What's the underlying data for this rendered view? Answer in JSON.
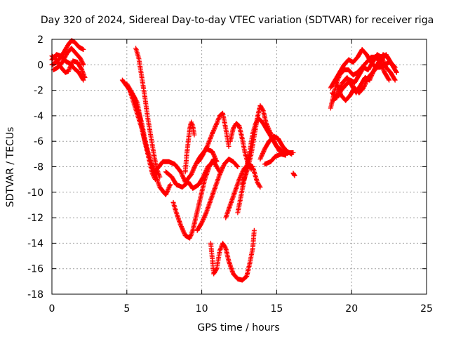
{
  "chart_data": {
    "type": "scatter",
    "title": "Day 320 of 2024, Sidereal Day-to-day VTEC variation (SDTVAR) for receiver riga",
    "xlabel": "GPS time / hours",
    "ylabel": "SDTVAR / TECUs",
    "xlim": [
      0,
      25
    ],
    "ylim": [
      -18,
      2
    ],
    "xticks": [
      0,
      5,
      10,
      15,
      20,
      25
    ],
    "yticks": [
      2,
      0,
      -2,
      -4,
      -6,
      -8,
      -10,
      -12,
      -14,
      -16,
      -18
    ],
    "grid": true,
    "marker": "plus",
    "color": "#ff0000",
    "series": [
      {
        "points": [
          [
            0,
            0.4
          ],
          [
            0.3,
            0.8
          ],
          [
            0.6,
            0.7
          ],
          [
            0.9,
            0.3
          ],
          [
            1.2,
            0.1
          ],
          [
            1.5,
            -0.3
          ],
          [
            1.8,
            -0.6
          ],
          [
            2.1,
            -1.2
          ]
        ]
      },
      {
        "points": [
          [
            0,
            0
          ],
          [
            0.3,
            0.2
          ],
          [
            0.6,
            0.6
          ],
          [
            0.9,
            1.2
          ],
          [
            1.1,
            1.6
          ],
          [
            1.3,
            1.9
          ],
          [
            1.5,
            1.8
          ],
          [
            1.8,
            1.4
          ],
          [
            2.1,
            1.2
          ]
        ]
      },
      {
        "points": [
          [
            0,
            0.7
          ],
          [
            0.3,
            0.4
          ],
          [
            0.6,
            -0.2
          ],
          [
            0.9,
            -0.6
          ],
          [
            1.1,
            -0.5
          ],
          [
            1.4,
            0.3
          ],
          [
            1.7,
            0.2
          ],
          [
            2.0,
            -0.4
          ],
          [
            2.2,
            -1.0
          ]
        ]
      },
      {
        "points": [
          [
            0.1,
            -0.4
          ],
          [
            0.4,
            -0.2
          ],
          [
            0.7,
            0.2
          ],
          [
            1.0,
            0.9
          ],
          [
            1.3,
            1.3
          ],
          [
            1.6,
            0.9
          ],
          [
            1.9,
            0.5
          ],
          [
            2.1,
            0.0
          ]
        ]
      },
      {
        "points": [
          [
            4.7,
            -1.2
          ],
          [
            5.2,
            -2.0
          ],
          [
            5.6,
            -3.5
          ],
          [
            6.0,
            -5.0
          ],
          [
            6.3,
            -6.5
          ],
          [
            6.6,
            -7.6
          ],
          [
            6.9,
            -8.6
          ],
          [
            7.2,
            -9.6
          ],
          [
            7.6,
            -10.2
          ],
          [
            7.9,
            -9.4
          ]
        ]
      },
      {
        "points": [
          [
            5.6,
            1.3
          ],
          [
            5.8,
            0.5
          ],
          [
            6.0,
            -1.0
          ],
          [
            6.2,
            -2.5
          ],
          [
            6.4,
            -4.2
          ],
          [
            6.6,
            -5.6
          ],
          [
            6.8,
            -7.0
          ],
          [
            7.0,
            -8.2
          ],
          [
            7.2,
            -8.8
          ]
        ]
      },
      {
        "points": [
          [
            5.0,
            -1.5
          ],
          [
            5.4,
            -2.3
          ],
          [
            5.7,
            -3.0
          ],
          [
            5.9,
            -4.2
          ],
          [
            6.1,
            -5.5
          ],
          [
            6.3,
            -6.5
          ],
          [
            6.5,
            -7.5
          ],
          [
            6.7,
            -8.5
          ],
          [
            6.9,
            -9.0
          ]
        ]
      },
      {
        "points": [
          [
            5.2,
            -2.0
          ],
          [
            5.5,
            -2.6
          ],
          [
            5.8,
            -3.8
          ],
          [
            6.0,
            -4.6
          ],
          [
            6.2,
            -5.8
          ],
          [
            6.4,
            -6.8
          ],
          [
            6.6,
            -7.6
          ],
          [
            6.8,
            -8.2
          ],
          [
            7.0,
            -8.6
          ]
        ]
      },
      {
        "points": [
          [
            7.0,
            -8.2
          ],
          [
            7.4,
            -7.6
          ],
          [
            7.8,
            -7.6
          ],
          [
            8.2,
            -7.8
          ],
          [
            8.6,
            -8.4
          ],
          [
            8.9,
            -9.2
          ],
          [
            9.3,
            -8.6
          ],
          [
            9.6,
            -7.8
          ],
          [
            9.9,
            -7.2
          ],
          [
            10.3,
            -6.6
          ],
          [
            10.7,
            -6.8
          ],
          [
            11.0,
            -7.6
          ]
        ]
      },
      {
        "points": [
          [
            7.6,
            -8.4
          ],
          [
            8.0,
            -8.8
          ],
          [
            8.3,
            -9.4
          ],
          [
            8.7,
            -9.6
          ],
          [
            9.1,
            -9.2
          ],
          [
            9.4,
            -9.7
          ],
          [
            9.8,
            -9.4
          ],
          [
            10.1,
            -8.8
          ],
          [
            10.4,
            -8.0
          ],
          [
            10.8,
            -7.6
          ],
          [
            11.2,
            -8.4
          ]
        ]
      },
      {
        "points": [
          [
            8.1,
            -10.8
          ],
          [
            8.3,
            -11.6
          ],
          [
            8.6,
            -12.6
          ],
          [
            8.9,
            -13.4
          ],
          [
            9.2,
            -13.6
          ],
          [
            9.4,
            -13.0
          ],
          [
            9.6,
            -12.0
          ],
          [
            9.8,
            -11.0
          ],
          [
            10.0,
            -10.0
          ],
          [
            10.2,
            -9.0
          ],
          [
            10.5,
            -8.0
          ],
          [
            10.8,
            -7.4
          ]
        ]
      },
      {
        "points": [
          [
            8.9,
            -8.4
          ],
          [
            9.0,
            -7.0
          ],
          [
            9.1,
            -6.0
          ],
          [
            9.2,
            -5.0
          ],
          [
            9.3,
            -4.5
          ],
          [
            9.4,
            -4.8
          ],
          [
            9.5,
            -5.5
          ]
        ]
      },
      {
        "points": [
          [
            9.7,
            -13.0
          ],
          [
            10.0,
            -12.4
          ],
          [
            10.3,
            -11.6
          ],
          [
            10.6,
            -10.6
          ],
          [
            10.9,
            -9.6
          ],
          [
            11.2,
            -8.6
          ],
          [
            11.5,
            -7.8
          ],
          [
            11.8,
            -7.4
          ],
          [
            12.1,
            -7.6
          ],
          [
            12.4,
            -8.0
          ]
        ]
      },
      {
        "points": [
          [
            9.8,
            -7.6
          ],
          [
            10.1,
            -7.0
          ],
          [
            10.4,
            -6.3
          ],
          [
            10.7,
            -5.4
          ],
          [
            11.0,
            -4.6
          ],
          [
            11.2,
            -4.0
          ],
          [
            11.4,
            -3.8
          ],
          [
            11.6,
            -5.0
          ],
          [
            11.8,
            -6.4
          ]
        ]
      },
      {
        "points": [
          [
            10.6,
            -14.0
          ],
          [
            10.7,
            -15.2
          ],
          [
            10.8,
            -16.4
          ],
          [
            11.0,
            -16.0
          ],
          [
            11.2,
            -14.6
          ],
          [
            11.4,
            -14.0
          ],
          [
            11.6,
            -14.4
          ],
          [
            11.8,
            -15.4
          ],
          [
            12.1,
            -16.4
          ],
          [
            12.4,
            -16.8
          ],
          [
            12.7,
            -16.9
          ],
          [
            13.0,
            -16.6
          ],
          [
            13.2,
            -15.6
          ],
          [
            13.4,
            -14.4
          ],
          [
            13.5,
            -13.0
          ]
        ]
      },
      {
        "points": [
          [
            11.9,
            -6.0
          ],
          [
            12.1,
            -5.0
          ],
          [
            12.3,
            -4.6
          ],
          [
            12.5,
            -4.8
          ],
          [
            12.7,
            -5.8
          ],
          [
            12.9,
            -7.0
          ],
          [
            13.1,
            -7.8
          ],
          [
            13.3,
            -8.2
          ]
        ]
      },
      {
        "points": [
          [
            11.6,
            -12.0
          ],
          [
            11.9,
            -11.0
          ],
          [
            12.2,
            -10.0
          ],
          [
            12.5,
            -9.0
          ],
          [
            12.8,
            -8.2
          ],
          [
            13.1,
            -7.8
          ],
          [
            13.4,
            -8.0
          ],
          [
            13.7,
            -9.2
          ],
          [
            13.9,
            -9.6
          ]
        ]
      },
      {
        "points": [
          [
            12.4,
            -11.6
          ],
          [
            12.6,
            -10.4
          ],
          [
            12.8,
            -9.2
          ],
          [
            13.0,
            -8.0
          ],
          [
            13.2,
            -6.8
          ],
          [
            13.4,
            -5.4
          ],
          [
            13.6,
            -4.6
          ],
          [
            13.8,
            -4.2
          ],
          [
            14.1,
            -4.6
          ],
          [
            14.4,
            -5.2
          ],
          [
            14.7,
            -5.8
          ],
          [
            15.0,
            -6.4
          ],
          [
            15.4,
            -6.8
          ],
          [
            15.8,
            -6.9
          ],
          [
            16.1,
            -6.9
          ]
        ]
      },
      {
        "points": [
          [
            12.7,
            -9.4
          ],
          [
            13.0,
            -8.4
          ],
          [
            13.3,
            -7.0
          ],
          [
            13.5,
            -5.6
          ],
          [
            13.7,
            -4.2
          ],
          [
            13.9,
            -3.2
          ],
          [
            14.1,
            -3.6
          ],
          [
            14.3,
            -4.6
          ],
          [
            14.6,
            -5.4
          ],
          [
            14.9,
            -6.2
          ],
          [
            15.2,
            -6.8
          ]
        ]
      },
      {
        "points": [
          [
            13.9,
            -7.4
          ],
          [
            14.2,
            -6.6
          ],
          [
            14.5,
            -6.0
          ],
          [
            14.8,
            -5.6
          ],
          [
            15.1,
            -5.8
          ],
          [
            15.4,
            -6.4
          ],
          [
            15.7,
            -6.8
          ],
          [
            16.0,
            -7.0
          ]
        ]
      },
      {
        "points": [
          [
            14.2,
            -7.8
          ],
          [
            14.6,
            -7.6
          ],
          [
            14.9,
            -7.2
          ],
          [
            15.3,
            -7.0
          ],
          [
            15.6,
            -7.1
          ]
        ]
      },
      {
        "points": [
          [
            16.1,
            -8.5
          ],
          [
            16.2,
            -8.7
          ]
        ]
      },
      {
        "points": [
          [
            18.6,
            -3.4
          ],
          [
            18.8,
            -2.4
          ],
          [
            19.0,
            -1.4
          ],
          [
            19.2,
            -0.8
          ],
          [
            19.5,
            -0.4
          ],
          [
            19.8,
            -0.4
          ],
          [
            20.1,
            -0.8
          ],
          [
            20.4,
            -0.6
          ],
          [
            20.7,
            -0.2
          ],
          [
            21.0,
            0.2
          ],
          [
            21.3,
            0.6
          ],
          [
            21.6,
            0.6
          ],
          [
            21.9,
            0.2
          ],
          [
            22.2,
            -0.6
          ],
          [
            22.5,
            -1.2
          ]
        ]
      },
      {
        "points": [
          [
            18.6,
            -1.8
          ],
          [
            18.9,
            -1.2
          ],
          [
            19.2,
            -0.6
          ],
          [
            19.5,
            0.0
          ],
          [
            19.8,
            0.4
          ],
          [
            20.1,
            0.2
          ],
          [
            20.4,
            0.6
          ],
          [
            20.7,
            1.2
          ],
          [
            21.0,
            0.8
          ],
          [
            21.3,
            0.2
          ],
          [
            21.6,
            -0.2
          ],
          [
            21.9,
            -0.2
          ],
          [
            22.2,
            0.0
          ],
          [
            22.5,
            0.2
          ]
        ]
      },
      {
        "points": [
          [
            18.7,
            -2.2
          ],
          [
            19.0,
            -2.6
          ],
          [
            19.3,
            -2.0
          ],
          [
            19.6,
            -1.6
          ],
          [
            19.9,
            -1.2
          ],
          [
            20.2,
            -1.4
          ],
          [
            20.5,
            -0.8
          ],
          [
            20.8,
            -0.2
          ],
          [
            21.1,
            -0.4
          ],
          [
            21.4,
            0.2
          ],
          [
            21.7,
            0.8
          ],
          [
            22.0,
            0.6
          ],
          [
            22.3,
            -0.2
          ],
          [
            22.6,
            -0.6
          ],
          [
            22.9,
            -1.2
          ]
        ]
      },
      {
        "points": [
          [
            18.8,
            -2.8
          ],
          [
            19.1,
            -2.2
          ],
          [
            19.4,
            -1.4
          ],
          [
            19.7,
            -1.0
          ],
          [
            20.0,
            -1.6
          ],
          [
            20.3,
            -2.2
          ],
          [
            20.6,
            -1.6
          ],
          [
            20.9,
            -1.0
          ],
          [
            21.2,
            -1.2
          ],
          [
            21.5,
            -0.4
          ],
          [
            21.8,
            0.2
          ],
          [
            22.1,
            0.8
          ],
          [
            22.4,
            0.6
          ],
          [
            22.7,
            0.0
          ],
          [
            23.0,
            -0.6
          ]
        ]
      },
      {
        "points": [
          [
            19.0,
            -1.4
          ],
          [
            19.3,
            -2.4
          ],
          [
            19.6,
            -2.8
          ],
          [
            19.9,
            -2.4
          ],
          [
            20.2,
            -1.8
          ],
          [
            20.5,
            -2.2
          ],
          [
            20.8,
            -1.8
          ],
          [
            21.1,
            -1.0
          ],
          [
            21.4,
            -0.6
          ],
          [
            21.7,
            -0.2
          ],
          [
            22.0,
            0.4
          ],
          [
            22.3,
            0.8
          ],
          [
            22.6,
            0.2
          ],
          [
            22.9,
            -0.2
          ]
        ]
      }
    ]
  }
}
